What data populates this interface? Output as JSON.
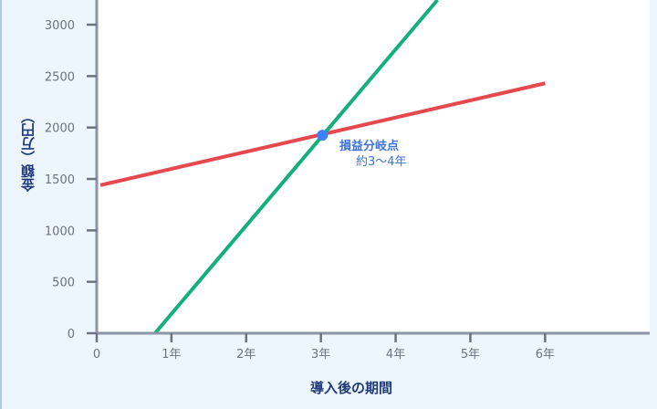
{
  "chart_data": {
    "type": "line",
    "title": "",
    "xlabel": "導入後の期間",
    "ylabel": "金額（万円）",
    "x_ticks": [
      {
        "value": 0,
        "label": "0"
      },
      {
        "value": 1,
        "label": "1年"
      },
      {
        "value": 2,
        "label": "2年"
      },
      {
        "value": 3,
        "label": "3年"
      },
      {
        "value": 4,
        "label": "4年"
      },
      {
        "value": 5,
        "label": "5年"
      },
      {
        "value": 6,
        "label": "6年"
      }
    ],
    "y_ticks": [
      0,
      500,
      1000,
      1500,
      2000,
      2500,
      3000
    ],
    "xlim": [
      0,
      7.4
    ],
    "ylim": [
      0,
      3240
    ],
    "grid": false,
    "series": [
      {
        "color": "#e5484d",
        "points": [
          [
            0.05,
            1440
          ],
          [
            6,
            2430
          ]
        ]
      },
      {
        "color": "#14b07a",
        "points": [
          [
            0.78,
            0
          ],
          [
            4.56,
            3240
          ]
        ]
      }
    ],
    "annotation": {
      "point": [
        3.02,
        1925
      ],
      "color": "#3b82f6",
      "title": "損益分岐点",
      "subtitle": "約3〜4年"
    }
  }
}
